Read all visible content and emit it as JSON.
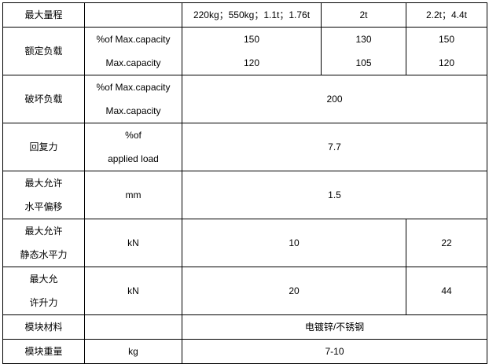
{
  "rows": [
    {
      "label": "最大量程",
      "unit": "",
      "c1": "220kg；550kg；1.1t；1.76t",
      "c2": "2t",
      "c3": "2.2t；4.4t"
    },
    {
      "label": "额定负载",
      "unit1": "%of Max.capacity",
      "unit2": "Max.capacity",
      "a": [
        "150",
        "130",
        "150"
      ],
      "b": [
        "120",
        "105",
        "120"
      ]
    },
    {
      "label": "破坏负载",
      "unit1": "%of Max.capacity",
      "unit2": "Max.capacity",
      "value": "200"
    },
    {
      "label": "回复力",
      "unit1": "%of",
      "unit2": "applied load",
      "value": "7.7"
    },
    {
      "label1": "最大允许",
      "label2": "水平偏移",
      "unit": "mm",
      "value": "1.5"
    },
    {
      "label1": "最大允许",
      "label2": "静态水平力",
      "unit": "kN",
      "v1": "10",
      "v2": "22"
    },
    {
      "label1": "最大允",
      "label2": "许升力",
      "unit": "kN",
      "v1": "20",
      "v2": "44"
    },
    {
      "label": "模块材料",
      "unit": "",
      "value": "电镀锌/不锈钢"
    },
    {
      "label": "模块重量",
      "unit": "kg",
      "value": "7-10"
    }
  ]
}
